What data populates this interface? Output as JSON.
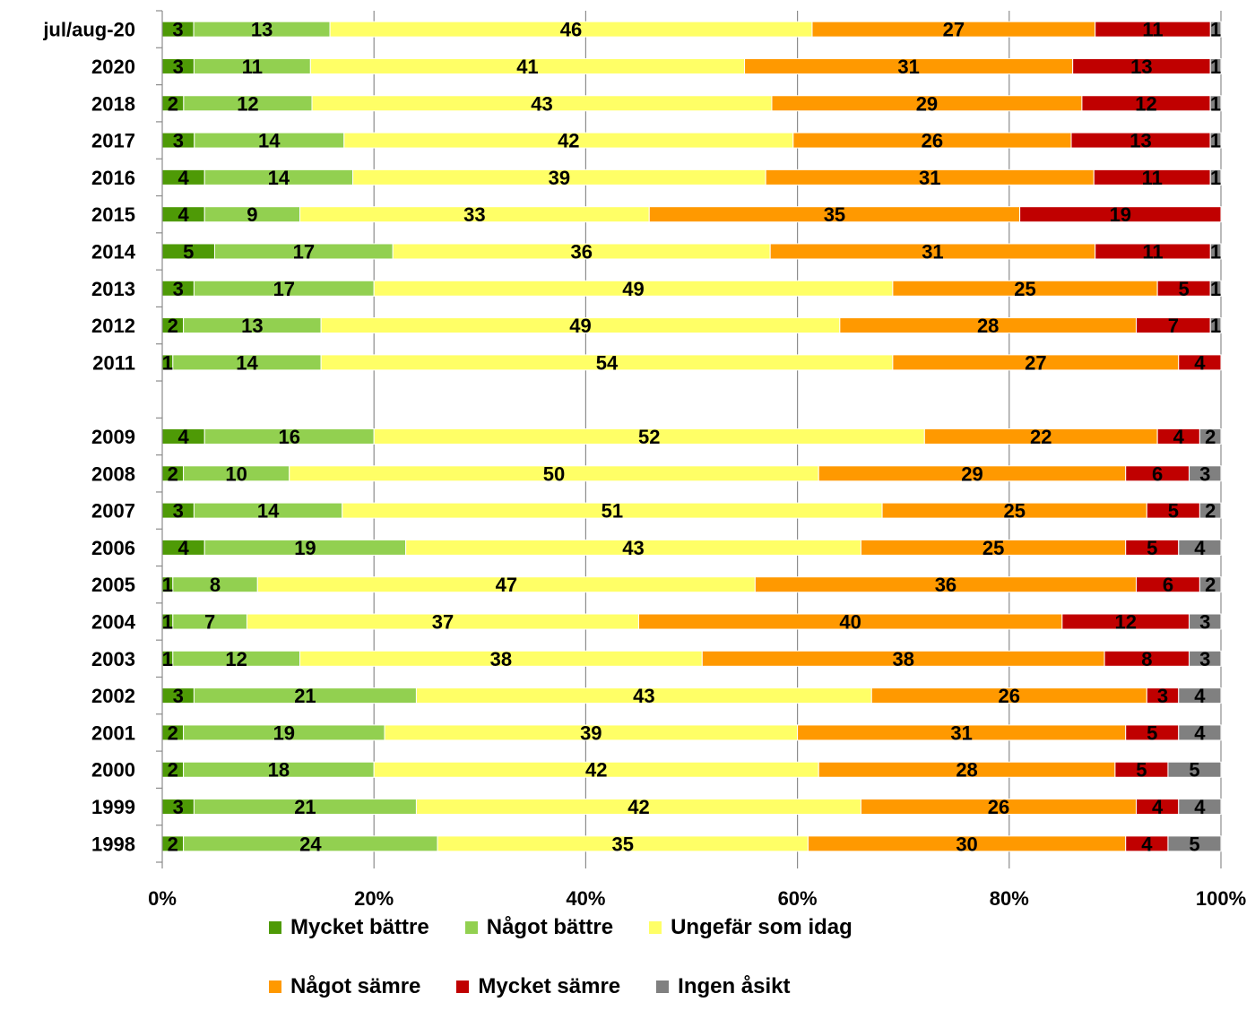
{
  "chart_data": {
    "type": "bar",
    "orientation": "horizontal",
    "stacked": "percent",
    "categories": [
      "jul/aug-20",
      "2020",
      "2018",
      "2017",
      "2016",
      "2015",
      "2014",
      "2013",
      "2012",
      "2011",
      "",
      "2009",
      "2008",
      "2007",
      "2006",
      "2005",
      "2004",
      "2003",
      "2002",
      "2001",
      "2000",
      "1999",
      "1998"
    ],
    "series": [
      {
        "name": "Mycket bättre",
        "color": "#4e9a06",
        "values": [
          3,
          3,
          2,
          3,
          4,
          4,
          5,
          3,
          2,
          1,
          null,
          4,
          2,
          3,
          4,
          1,
          1,
          1,
          3,
          2,
          2,
          3,
          2
        ]
      },
      {
        "name": "Något bättre",
        "color": "#92d050",
        "values": [
          13,
          11,
          12,
          14,
          14,
          9,
          17,
          17,
          13,
          14,
          null,
          16,
          10,
          14,
          19,
          8,
          7,
          12,
          21,
          19,
          18,
          21,
          24
        ]
      },
      {
        "name": "Ungefär som idag",
        "color": "#ffff66",
        "values": [
          46,
          41,
          43,
          42,
          39,
          33,
          36,
          49,
          49,
          54,
          null,
          52,
          50,
          51,
          43,
          47,
          37,
          38,
          43,
          39,
          42,
          42,
          35
        ]
      },
      {
        "name": "Något sämre",
        "color": "#ff9900",
        "values": [
          27,
          31,
          29,
          26,
          31,
          35,
          31,
          25,
          28,
          27,
          null,
          22,
          29,
          25,
          25,
          36,
          40,
          38,
          26,
          31,
          28,
          26,
          30
        ]
      },
      {
        "name": "Mycket sämre",
        "color": "#c00000",
        "values": [
          11,
          13,
          12,
          13,
          11,
          19,
          11,
          5,
          7,
          4,
          null,
          4,
          6,
          5,
          5,
          6,
          12,
          8,
          3,
          5,
          5,
          4,
          4
        ]
      },
      {
        "name": "Ingen åsikt",
        "color": "#808080",
        "values": [
          1,
          1,
          1,
          1,
          1,
          null,
          1,
          1,
          1,
          null,
          null,
          2,
          3,
          2,
          4,
          2,
          3,
          3,
          4,
          4,
          5,
          4,
          5
        ]
      }
    ],
    "xticks": [
      "0%",
      "20%",
      "40%",
      "60%",
      "80%",
      "100%"
    ],
    "xlim": [
      0,
      100
    ],
    "grid": true,
    "legend_position": "bottom"
  },
  "legend": {
    "rows": [
      [
        "Mycket bättre",
        "Något bättre",
        "Ungefär som idag"
      ],
      [
        "Något sämre",
        "Mycket sämre",
        "Ingen åsikt"
      ]
    ],
    "colors": [
      [
        "#4e9a06",
        "#92d050",
        "#ffff66"
      ],
      [
        "#ff9900",
        "#c00000",
        "#808080"
      ]
    ]
  }
}
